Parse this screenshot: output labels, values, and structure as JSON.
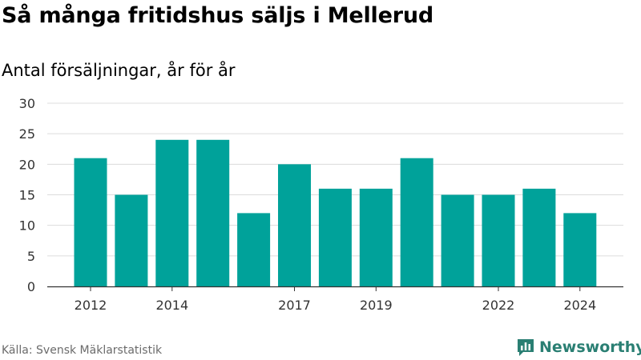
{
  "title": "Så många fritidshus säljs i Mellerud",
  "subtitle": "Antal försäljningar, år för år",
  "source": "Källa: Svensk Mäklarstatistik",
  "brand": {
    "name": "Newsworthy",
    "icon": "newsworthy-logo-icon",
    "color": "#2a7f73"
  },
  "colors": {
    "bar": "#00a29a",
    "grid": "#dcdcdc",
    "axis": "#333333"
  },
  "chart_data": {
    "type": "bar",
    "categories": [
      "2012",
      "2013",
      "2014",
      "2015",
      "2016",
      "2017",
      "2018",
      "2019",
      "2020",
      "2021",
      "2022",
      "2023",
      "2024"
    ],
    "values": [
      21,
      15,
      24,
      24,
      12,
      20,
      16,
      16,
      21,
      15,
      15,
      16,
      12
    ],
    "x_tick_labels": [
      "2012",
      "",
      "2014",
      "",
      "",
      "2017",
      "",
      "2019",
      "",
      "",
      "2022",
      "",
      "2024"
    ],
    "y_ticks": [
      0,
      5,
      10,
      15,
      20,
      25,
      30
    ],
    "ylim": [
      0,
      30
    ],
    "grid": true,
    "legend": "none",
    "xlabel": "",
    "ylabel": ""
  }
}
